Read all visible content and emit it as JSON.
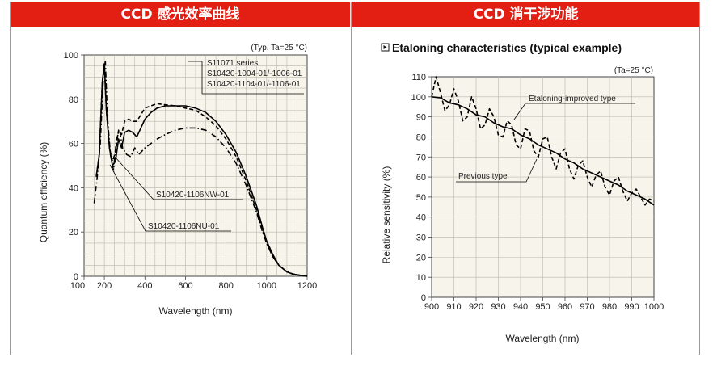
{
  "panels": {
    "left_header": "CCD 感光效率曲线",
    "right_header": "CCD  消干涉功能"
  },
  "colors": {
    "header_bg": "#e21f12",
    "plot_bg": "#f7f5eb",
    "grid": "#b9b7ab",
    "curve": "#000000"
  },
  "chart_data": [
    {
      "type": "line",
      "title": "",
      "condition": "(Typ. Ta=25 °C)",
      "xlabel": "Wavelength (nm)",
      "ylabel": "Quantum efficiency (%)",
      "xlim": [
        100,
        1200
      ],
      "ylim": [
        0,
        100
      ],
      "xticks": [
        100,
        200,
        400,
        600,
        800,
        1000,
        1200
      ],
      "yticks": [
        0,
        20,
        40,
        60,
        80,
        100
      ],
      "grid": true,
      "series": [
        {
          "name": "S11071 series / S10420-1004-01/-1006-01 / S10420-1104-01/-1106-01",
          "style": "solid",
          "x": [
            160,
            175,
            190,
            200,
            210,
            225,
            240,
            255,
            270,
            285,
            300,
            320,
            340,
            360,
            380,
            400,
            430,
            460,
            500,
            550,
            600,
            650,
            700,
            750,
            800,
            850,
            900,
            950,
            980,
            1000,
            1030,
            1060,
            1100,
            1130,
            1160,
            1200
          ],
          "values": [
            45,
            55,
            88,
            96,
            75,
            58,
            50,
            52,
            62,
            58,
            65,
            66,
            65,
            63,
            67,
            71,
            74,
            76,
            77,
            77,
            77,
            76,
            74,
            70,
            64,
            56,
            45,
            32,
            22,
            16,
            10,
            5,
            2,
            1,
            0.5,
            0
          ]
        },
        {
          "name": "S10420-1106NW-01",
          "style": "dashed",
          "x": [
            160,
            175,
            190,
            200,
            210,
            225,
            240,
            255,
            270,
            285,
            300,
            320,
            340,
            360,
            380,
            400,
            430,
            460,
            500,
            550,
            600,
            650,
            700,
            750,
            800,
            850,
            900,
            950,
            980,
            1000,
            1030,
            1060,
            1100,
            1130,
            1160,
            1200
          ],
          "values": [
            45,
            55,
            88,
            96,
            75,
            58,
            52,
            56,
            66,
            64,
            70,
            71,
            70,
            70,
            73,
            76,
            77,
            78,
            77.5,
            77,
            76,
            75,
            72,
            68,
            62,
            54,
            43,
            30,
            21,
            15,
            9,
            5,
            2,
            1,
            0.5,
            0
          ]
        },
        {
          "name": "S10420-1106NU-01",
          "style": "dashdot",
          "x": [
            150,
            165,
            180,
            195,
            205,
            215,
            230,
            245,
            260,
            275,
            290,
            310,
            330,
            350,
            370,
            400,
            430,
            460,
            500,
            550,
            600,
            650,
            700,
            750,
            800,
            850,
            900,
            950,
            980,
            1000,
            1030,
            1060,
            1100,
            1130,
            1160,
            1200
          ],
          "values": [
            33,
            45,
            60,
            90,
            97,
            72,
            55,
            48,
            62,
            66,
            58,
            55,
            54,
            58,
            55,
            58,
            60,
            62,
            64,
            66,
            67,
            67,
            66,
            63,
            58,
            51,
            41,
            29,
            20,
            15,
            9,
            5,
            2,
            1,
            0.5,
            0
          ]
        }
      ],
      "annotations": [
        "S11071 series",
        "S10420-1004-01/-1006-01",
        "S10420-1104-01/-1106-01",
        "S10420-1106NW-01",
        "S10420-1106NU-01"
      ]
    },
    {
      "type": "line",
      "title": "Etaloning characteristics (typical example)",
      "condition": "(Ta=25 °C)",
      "xlabel": "Wavelength (nm)",
      "ylabel": "Relative sensitivity (%)",
      "xlim": [
        900,
        1000
      ],
      "ylim": [
        0,
        110
      ],
      "xticks": [
        900,
        910,
        920,
        930,
        940,
        950,
        960,
        970,
        980,
        990,
        1000
      ],
      "yticks": [
        0,
        10,
        20,
        30,
        40,
        50,
        60,
        70,
        80,
        90,
        100,
        110
      ],
      "grid": true,
      "series": [
        {
          "name": "Etaloning-improved type",
          "style": "solid",
          "x": [
            900,
            904,
            908,
            912,
            916,
            920,
            924,
            928,
            932,
            936,
            940,
            944,
            948,
            952,
            956,
            960,
            964,
            968,
            972,
            976,
            980,
            984,
            988,
            992,
            996,
            1000
          ],
          "values": [
            100,
            99.5,
            97,
            96,
            94,
            91,
            90,
            87,
            85,
            84,
            81,
            79,
            76,
            74,
            72,
            69,
            67,
            64,
            62,
            60,
            58,
            56,
            53,
            51,
            49,
            46
          ]
        },
        {
          "name": "Previous type",
          "style": "dashed",
          "x": [
            900,
            902,
            904,
            906,
            908,
            910,
            912,
            914,
            916,
            918,
            920,
            922,
            924,
            926,
            928,
            930,
            932,
            934,
            936,
            938,
            940,
            942,
            944,
            946,
            948,
            950,
            952,
            954,
            956,
            958,
            960,
            962,
            964,
            966,
            968,
            970,
            972,
            974,
            976,
            978,
            980,
            982,
            984,
            986,
            988,
            990,
            992,
            994,
            996,
            998,
            1000
          ],
          "values": [
            100,
            110,
            102,
            93,
            96,
            104,
            98,
            88,
            90,
            100,
            94,
            84,
            86,
            94,
            90,
            81,
            80,
            88,
            86,
            76,
            74,
            84,
            83,
            73,
            70,
            79,
            80,
            70,
            64,
            72,
            74,
            64,
            59,
            66,
            68,
            60,
            55,
            61,
            63,
            55,
            51,
            58,
            60,
            53,
            48,
            52,
            54,
            50,
            46,
            49,
            48
          ]
        }
      ],
      "annotations": [
        "Etaloning-improved type",
        "Previous type"
      ]
    }
  ]
}
